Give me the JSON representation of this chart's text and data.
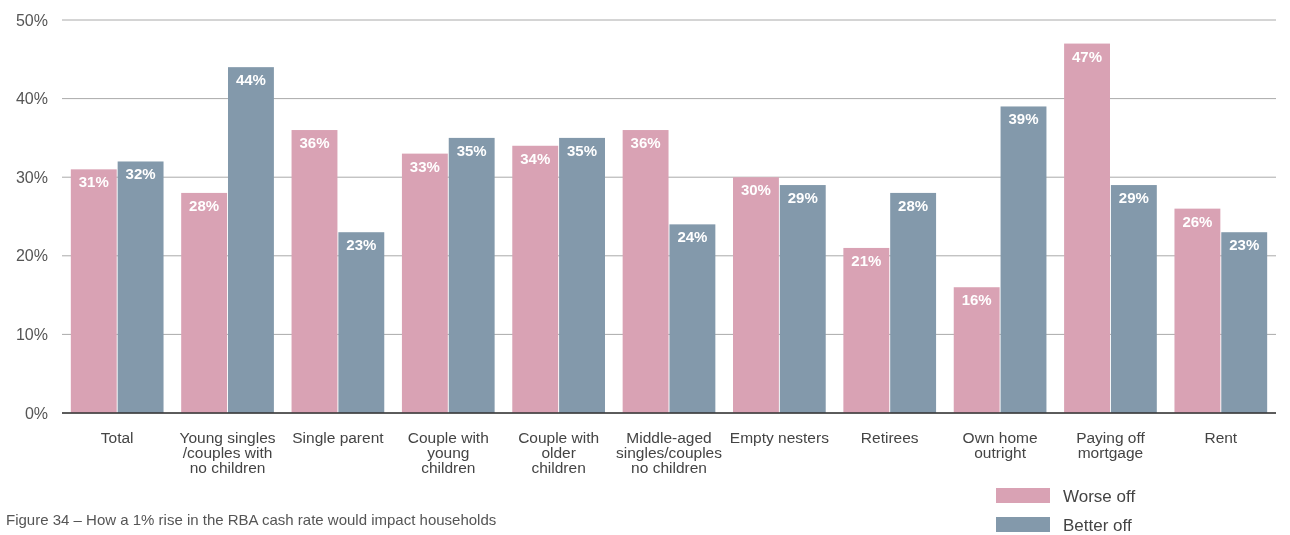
{
  "chart_data": {
    "type": "bar",
    "categories": [
      "Total",
      "Young singles /couples with no children",
      "Single parent",
      "Couple with young children",
      "Couple with older children",
      "Middle-aged singles/couples no children",
      "Empty nesters",
      "Retirees",
      "Own home outright",
      "Paying off mortgage",
      "Rent"
    ],
    "series": [
      {
        "name": "Worse off",
        "color": "#d9a2b4",
        "values": [
          31,
          28,
          36,
          33,
          34,
          36,
          30,
          21,
          16,
          47,
          26
        ],
        "value_labels": [
          "31%",
          "28%",
          "36%",
          "33%",
          "34%",
          "36%",
          "30%",
          "21%",
          "16%",
          "47%",
          "26%"
        ]
      },
      {
        "name": "Better off",
        "color": "#8399ab",
        "values": [
          32,
          44,
          23,
          35,
          35,
          24,
          29,
          28,
          39,
          29,
          23
        ],
        "value_labels": [
          "32%",
          "44%",
          "23%",
          "35%",
          "35%",
          "24%",
          "29%",
          "28%",
          "39%",
          "29%",
          "23%"
        ]
      }
    ],
    "ylim": [
      0,
      50
    ],
    "yticks": [
      {
        "value": 0,
        "label": "0%"
      },
      {
        "value": 10,
        "label": "10%"
      },
      {
        "value": 20,
        "label": "20%"
      },
      {
        "value": 30,
        "label": "30%"
      },
      {
        "value": 40,
        "label": "40%"
      },
      {
        "value": 50,
        "label": "50%"
      }
    ],
    "grid": "y",
    "legend": "bottom right",
    "annotations": [
      "Figure 34 – How a 1% rise in the RBA cash rate would impact households"
    ]
  }
}
